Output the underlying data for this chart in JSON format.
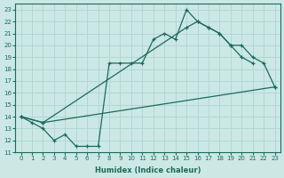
{
  "xlabel": "Humidex (Indice chaleur)",
  "bg_color": "#cce8e4",
  "line_color": "#1a6b5a",
  "grid_color": "#b0d8d2",
  "xlim": [
    -0.5,
    23.5
  ],
  "ylim": [
    11,
    23.5
  ],
  "xticks": [
    0,
    1,
    2,
    3,
    4,
    5,
    6,
    7,
    8,
    9,
    10,
    11,
    12,
    13,
    14,
    15,
    16,
    17,
    18,
    19,
    20,
    21,
    22,
    23
  ],
  "yticks": [
    11,
    12,
    13,
    14,
    15,
    16,
    17,
    18,
    19,
    20,
    21,
    22,
    23
  ],
  "line1_x": [
    0,
    1,
    2,
    3,
    4,
    5,
    6,
    7,
    8,
    9,
    10,
    11,
    12,
    13,
    14,
    15,
    16,
    17,
    18,
    19,
    20,
    21
  ],
  "line1_y": [
    14.0,
    13.5,
    13.0,
    12.0,
    12.5,
    11.5,
    11.5,
    11.5,
    18.5,
    18.5,
    18.5,
    18.5,
    20.5,
    21.0,
    20.5,
    23.0,
    22.0,
    21.5,
    21.0,
    20.0,
    19.0,
    18.5
  ],
  "line2_x": [
    0,
    2,
    15,
    16,
    17,
    18,
    19,
    20,
    21,
    22,
    23
  ],
  "line2_y": [
    14.0,
    13.5,
    21.5,
    22.0,
    21.5,
    21.0,
    20.0,
    20.0,
    19.0,
    18.5,
    16.5
  ],
  "line3_x": [
    0,
    2,
    23
  ],
  "line3_y": [
    14.0,
    13.5,
    16.5
  ]
}
